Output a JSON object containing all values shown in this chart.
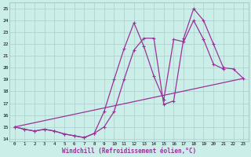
{
  "xlabel": "Windchill (Refroidissement éolien,°C)",
  "xlim": [
    -0.5,
    23.5
  ],
  "ylim": [
    13.8,
    25.5
  ],
  "xticks": [
    0,
    1,
    2,
    3,
    4,
    5,
    6,
    7,
    8,
    9,
    10,
    11,
    12,
    13,
    14,
    15,
    16,
    17,
    18,
    19,
    20,
    21,
    22,
    23
  ],
  "yticks": [
    14,
    15,
    16,
    17,
    18,
    19,
    20,
    21,
    22,
    23,
    24,
    25
  ],
  "bg_color": "#cceee8",
  "grid_color": "#aacccc",
  "line_color": "#993399",
  "line1_x": [
    0,
    1,
    2,
    3,
    4,
    5,
    6,
    7,
    8,
    9,
    10,
    11,
    12,
    13,
    14,
    15,
    16,
    17,
    18,
    19,
    20,
    21,
    22,
    23
  ],
  "line1_y": [
    15.0,
    14.8,
    14.65,
    14.8,
    14.65,
    14.4,
    14.25,
    14.1,
    14.45,
    16.3,
    19.0,
    21.6,
    23.8,
    21.8,
    19.3,
    17.3,
    22.4,
    22.2,
    24.0,
    22.4,
    20.3,
    19.9,
    null,
    null
  ],
  "line2_x": [
    0,
    1,
    2,
    3,
    4,
    5,
    6,
    7,
    8,
    9,
    10,
    11,
    12,
    13,
    14,
    15,
    16,
    17,
    18,
    19,
    20,
    21,
    22,
    23
  ],
  "line2_y": [
    15.0,
    14.8,
    14.65,
    14.8,
    14.65,
    14.4,
    14.25,
    14.1,
    14.45,
    15.0,
    16.3,
    19.0,
    21.5,
    22.5,
    22.5,
    16.9,
    17.2,
    22.5,
    25.0,
    24.0,
    22.0,
    20.0,
    19.9,
    19.1
  ],
  "line3_x": [
    0,
    23
  ],
  "line3_y": [
    15.0,
    19.1
  ]
}
